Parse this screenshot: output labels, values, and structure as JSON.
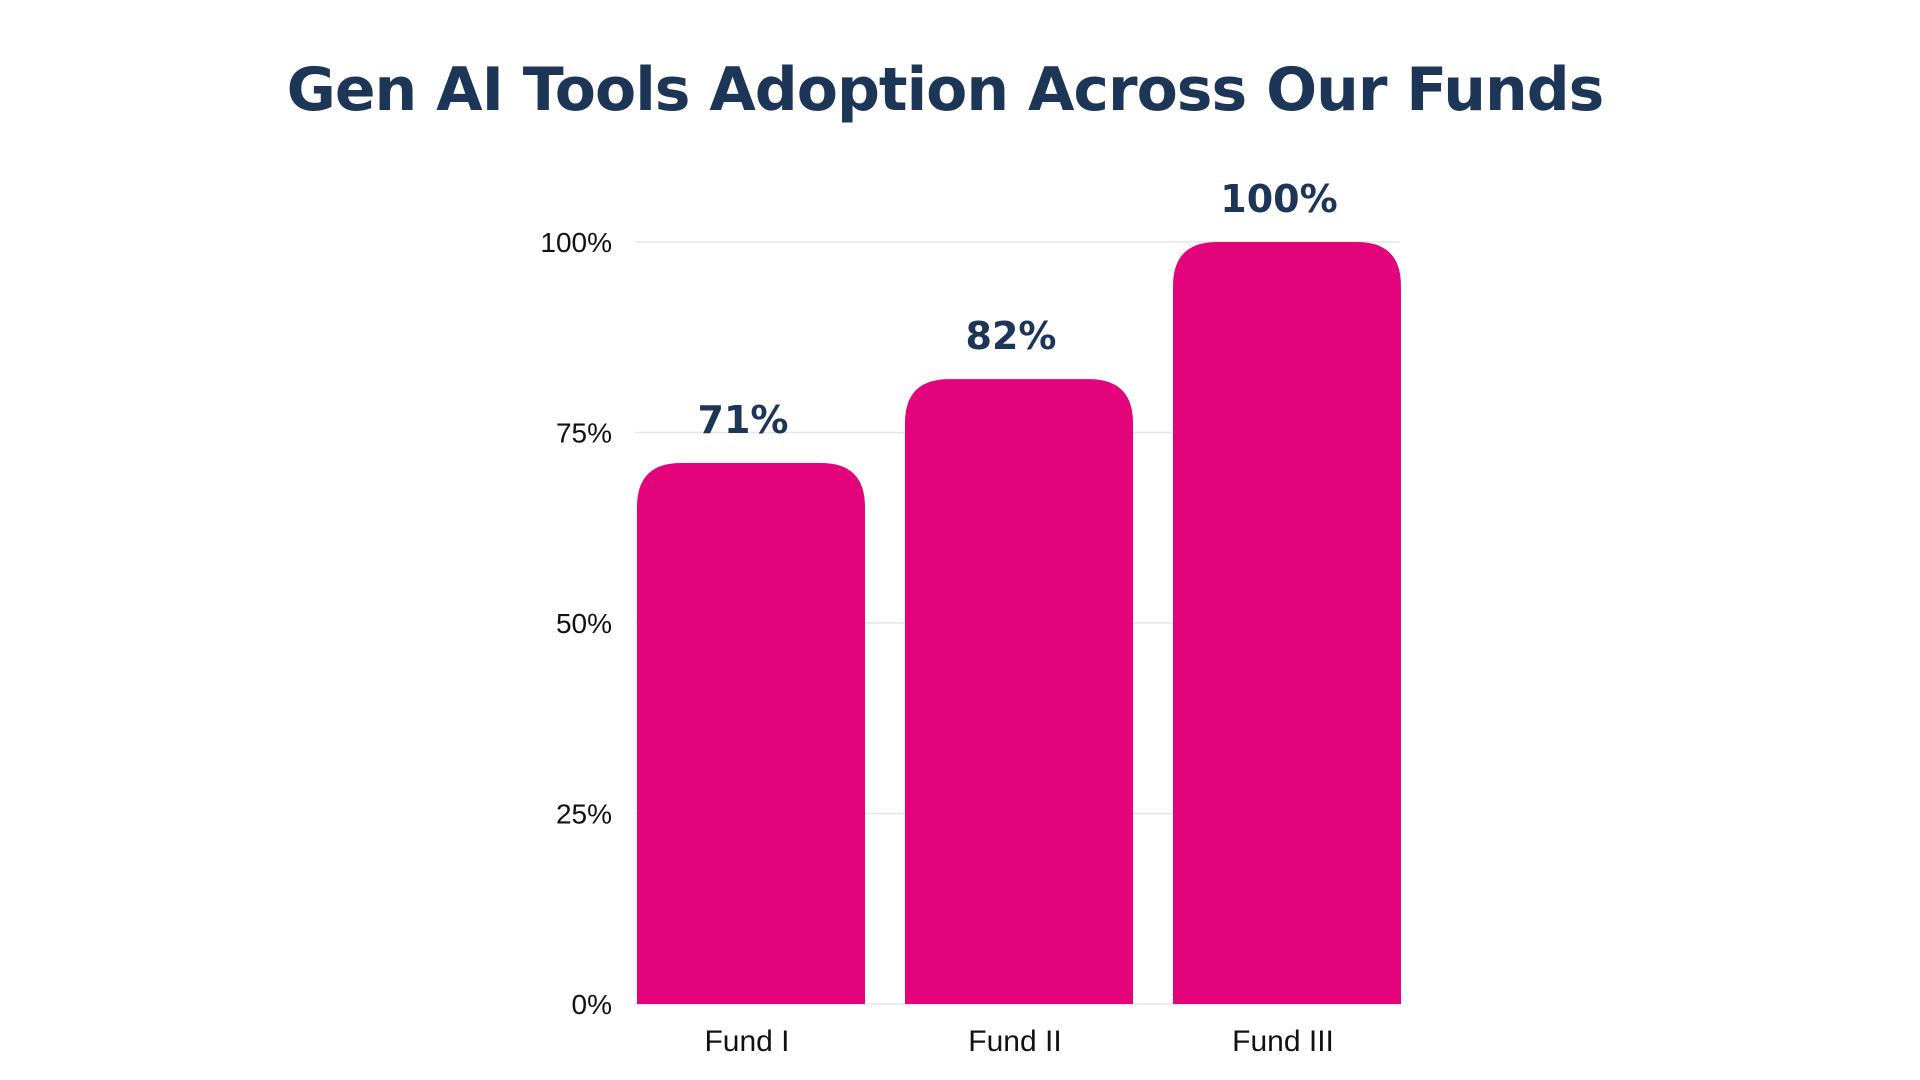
{
  "colors": {
    "bar": "#E3047C",
    "title": "#1D3557",
    "data_label": "#1D3557",
    "grid": "#E6E6E6"
  },
  "chart_data": {
    "type": "bar",
    "title": "Gen AI Tools Adoption Across Our Funds",
    "categories": [
      "Fund I",
      "Fund II",
      "Fund III"
    ],
    "values": [
      71,
      82,
      100
    ],
    "data_labels": [
      "71%",
      "82%",
      "100%"
    ],
    "yticks": [
      0,
      25,
      50,
      75,
      100
    ],
    "ytick_labels": [
      "0%",
      "25%",
      "50%",
      "75%",
      "100%"
    ],
    "ylim": [
      0,
      100
    ],
    "grid": true,
    "legend": false
  }
}
